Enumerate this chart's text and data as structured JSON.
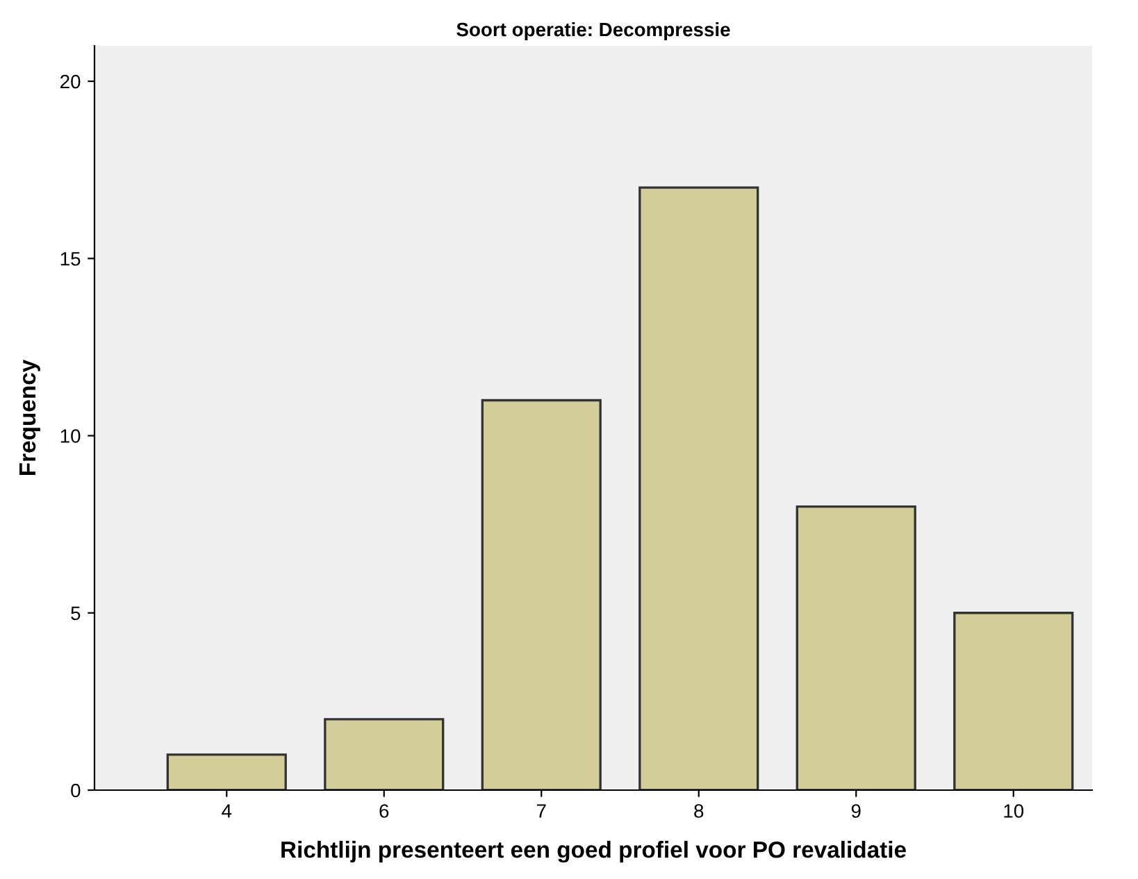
{
  "chart_data": {
    "type": "bar",
    "title": "Soort operatie: Decompressie",
    "xlabel": "Richtlijn presenteert een goed profiel voor PO revalidatie",
    "ylabel": "Frequency",
    "categories": [
      "4",
      "6",
      "7",
      "8",
      "9",
      "10"
    ],
    "values": [
      1,
      2,
      11,
      17,
      8,
      5
    ],
    "color": "#d3ce97",
    "ylim": [
      0,
      21
    ],
    "yticks": [
      0,
      5,
      10,
      15,
      20
    ],
    "grid": false,
    "legend": false
  }
}
